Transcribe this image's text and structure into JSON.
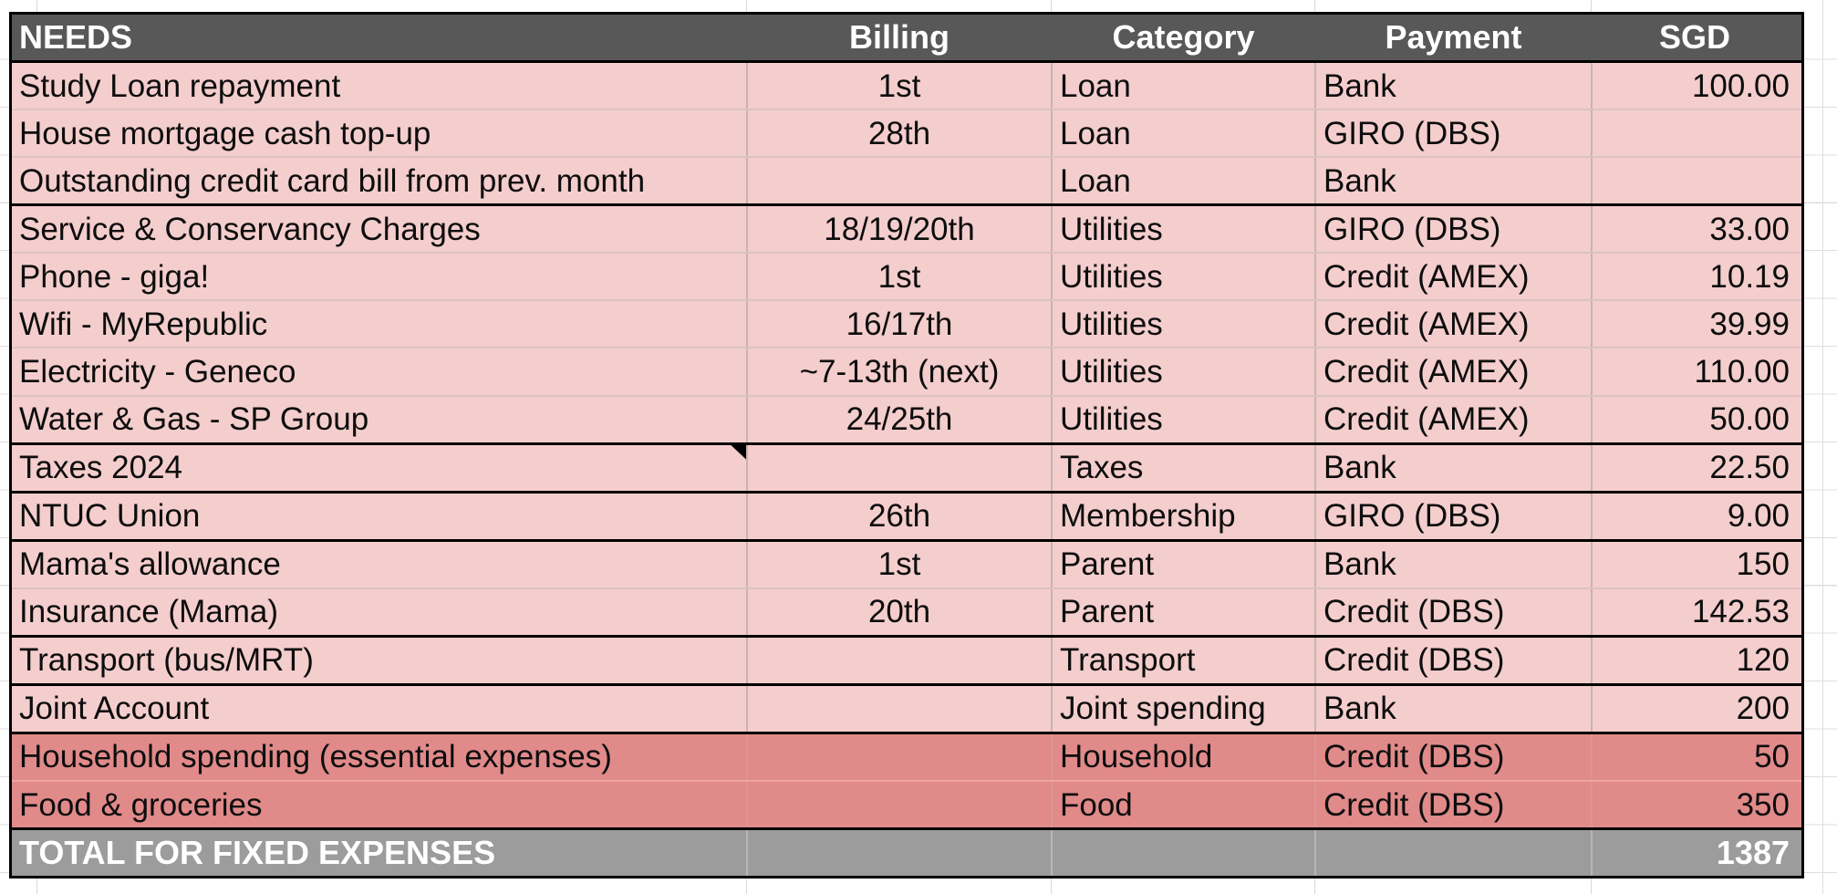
{
  "colors": {
    "header_bg": "#585858",
    "row_pink": "#f4cdcd",
    "row_red": "#e18a8a",
    "total_bg": "#9c9c9c",
    "thick_border": "#000000",
    "header_text": "#ffffff",
    "body_text": "#0d0d0d"
  },
  "table": {
    "header": {
      "needs": "NEEDS",
      "billing": "Billing",
      "category": "Category",
      "payment": "Payment",
      "sgd": "SGD"
    },
    "rows": [
      {
        "name": "Study Loan repayment",
        "billing": "1st",
        "category": "Loan",
        "payment": "Bank",
        "sgd": "100.00",
        "sep": "thin"
      },
      {
        "name": "House mortgage cash top-up",
        "billing": "28th",
        "category": "Loan",
        "payment": "GIRO (DBS)",
        "sgd": "",
        "sep": "thin"
      },
      {
        "name": "Outstanding credit card bill from prev. month",
        "billing": "",
        "category": "Loan",
        "payment": "Bank",
        "sgd": "",
        "sep": "thick"
      },
      {
        "name": "Service & Conservancy Charges",
        "billing": "18/19/20th",
        "category": "Utilities",
        "payment": "GIRO (DBS)",
        "sgd": "33.00",
        "sep": "thin"
      },
      {
        "name": "Phone - giga!",
        "billing": "1st",
        "category": "Utilities",
        "payment": "Credit (AMEX)",
        "sgd": "10.19",
        "sep": "thin"
      },
      {
        "name": "Wifi - MyRepublic",
        "billing": "16/17th",
        "category": "Utilities",
        "payment": "Credit (AMEX)",
        "sgd": "39.99",
        "sep": "thin"
      },
      {
        "name": "Electricity - Geneco",
        "billing": "~7-13th (next)",
        "category": "Utilities",
        "payment": "Credit (AMEX)",
        "sgd": "110.00",
        "sep": "thin"
      },
      {
        "name": "Water & Gas - SP Group",
        "billing": "24/25th",
        "category": "Utilities",
        "payment": "Credit (AMEX)",
        "sgd": "50.00",
        "sep": "thick"
      },
      {
        "name": "Taxes 2024",
        "billing": "",
        "category": "Taxes",
        "payment": "Bank",
        "sgd": "22.50",
        "sep": "thick",
        "flag": true
      },
      {
        "name": "NTUC Union",
        "billing": "26th",
        "category": "Membership",
        "payment": "GIRO (DBS)",
        "sgd": "9.00",
        "sep": "thick"
      },
      {
        "name": "Mama's allowance",
        "billing": "1st",
        "category": "Parent",
        "payment": "Bank",
        "sgd": "150",
        "sep": "thin"
      },
      {
        "name": "Insurance (Mama)",
        "billing": "20th",
        "category": "Parent",
        "payment": "Credit (DBS)",
        "sgd": "142.53",
        "sep": "thick"
      },
      {
        "name": "Transport (bus/MRT)",
        "billing": "",
        "category": "Transport",
        "payment": "Credit (DBS)",
        "sgd": "120",
        "sep": "thick"
      },
      {
        "name": "Joint Account",
        "billing": "",
        "category": "Joint spending",
        "payment": "Bank",
        "sgd": "200",
        "sep": "thick"
      },
      {
        "name": "Household spending (essential expenses)",
        "billing": "",
        "category": "Household",
        "payment": "Credit (DBS)",
        "sgd": "50",
        "sep": "thin",
        "emphasis": true
      },
      {
        "name": "Food & groceries",
        "billing": "",
        "category": "Food",
        "payment": "Credit (DBS)",
        "sgd": "350",
        "sep": "thick",
        "emphasis": true
      }
    ],
    "total": {
      "label": "TOTAL FOR FIXED EXPENSES",
      "sgd": "1387"
    }
  }
}
